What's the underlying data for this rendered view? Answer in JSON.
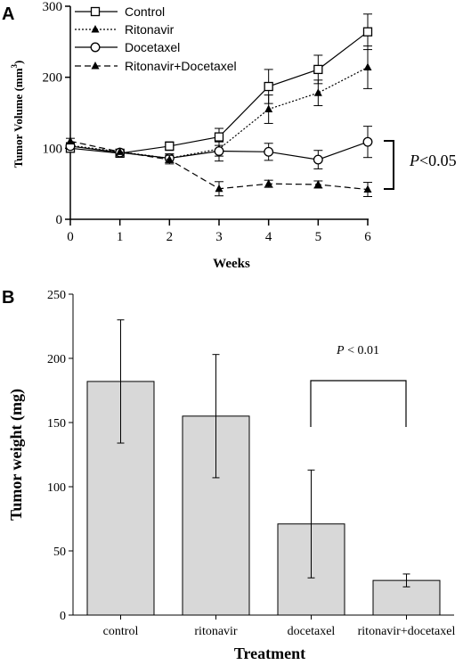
{
  "chart_data": [
    {
      "type": "line",
      "panel_label": "A",
      "xlabel": "Weeks",
      "ylabel": "Tumor Volume (mm3)",
      "ylabel_main": "Tumor Volume (mm",
      "ylabel_sup": "3",
      "ylabel_close": ")",
      "x": [
        0,
        1,
        2,
        3,
        4,
        5,
        6
      ],
      "xlim": [
        0,
        6
      ],
      "ylim": [
        0,
        300
      ],
      "yticks": [
        0,
        100,
        200,
        300
      ],
      "legend_position": "top-left",
      "series": [
        {
          "name": "Control",
          "marker": "open-square",
          "dash": "solid",
          "values": [
            100,
            93,
            103,
            116,
            187,
            211,
            264
          ],
          "errors": [
            4,
            3,
            6,
            12,
            24,
            20,
            25
          ]
        },
        {
          "name": "Ritonavir",
          "marker": "filled-triangle",
          "dash": "dotted",
          "values": [
            104,
            95,
            86,
            99,
            155,
            178,
            214
          ],
          "errors": [
            4,
            3,
            6,
            10,
            20,
            18,
            30
          ]
        },
        {
          "name": "Docetaxel",
          "marker": "open-circle",
          "dash": "solid",
          "values": [
            103,
            94,
            86,
            96,
            95,
            84,
            109
          ],
          "errors": [
            4,
            3,
            6,
            14,
            12,
            13,
            22
          ]
        },
        {
          "name": "Ritonavir+Docetaxel",
          "marker": "filled-triangle",
          "dash": "dashed",
          "values": [
            110,
            95,
            84,
            43,
            50,
            49,
            42
          ],
          "errors": [
            4,
            3,
            6,
            10,
            5,
            5,
            10
          ]
        }
      ],
      "annotation": {
        "text": "P<0.05",
        "italic_part": "P",
        "rest": "<0.05",
        "between": [
          "Docetaxel",
          "Ritonavir+Docetaxel"
        ]
      }
    },
    {
      "type": "bar",
      "panel_label": "B",
      "xlabel": "Treatment",
      "ylabel": "Tumor weight (mg)",
      "categories": [
        "control",
        "ritonavir",
        "docetaxel",
        "ritonavir+docetaxel"
      ],
      "values": [
        182,
        155,
        71,
        27
      ],
      "errors": [
        48,
        48,
        42,
        5
      ],
      "ylim": [
        0,
        250
      ],
      "yticks": [
        0,
        50,
        100,
        150,
        200,
        250
      ],
      "bar_color": "#d8d8d8",
      "annotation": {
        "text": "P < 0.01",
        "italic_part": "P",
        "rest": " < 0.01",
        "between": [
          "docetaxel",
          "ritonavir+docetaxel"
        ]
      }
    }
  ]
}
